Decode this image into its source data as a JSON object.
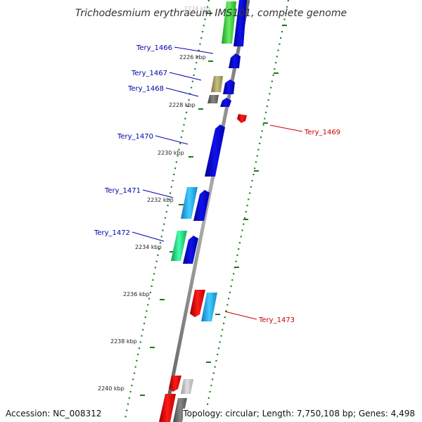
{
  "title": "Trichodesmium erythraeum IMS101, complete genome",
  "footer": {
    "accession": "Accession: NC_008312",
    "topology": "Topology: circular; Length: 7,750,108 bp; Genes: 4,498"
  },
  "colors": {
    "backbone": "#7a7a7a",
    "dot_track": "#1a7a1a",
    "forward_label": "#0000aa",
    "reverse_label": "#cc0000",
    "blue_gene": "#0000dd",
    "red_gene": "#ee0000",
    "cyan_gene": "#22aaee",
    "green_gene": "#22dd88",
    "olive_gene": "#a09a55",
    "grey_gene": "#666666"
  },
  "ticks": [
    {
      "label": "2224 kbp",
      "faded": true
    },
    {
      "label": "2226 kbp",
      "faded": false
    },
    {
      "label": "2228 kbp",
      "faded": false
    },
    {
      "label": "2230 kbp",
      "faded": false
    },
    {
      "label": "2232 kbp",
      "faded": false
    },
    {
      "label": "2234 kbp",
      "faded": false
    },
    {
      "label": "2236 kbp",
      "faded": false
    },
    {
      "label": "2238 kbp",
      "faded": false
    },
    {
      "label": "2240 kbp",
      "faded": false
    }
  ],
  "gene_labels": [
    {
      "text": "Tery_1466",
      "strand": "forward"
    },
    {
      "text": "Tery_1467",
      "strand": "forward"
    },
    {
      "text": "Tery_1468",
      "strand": "forward"
    },
    {
      "text": "Tery_1470",
      "strand": "forward"
    },
    {
      "text": "Tery_1471",
      "strand": "forward"
    },
    {
      "text": "Tery_1472",
      "strand": "forward"
    },
    {
      "text": "Tery_1469",
      "strand": "reverse"
    },
    {
      "text": "Tery_1473",
      "strand": "reverse"
    }
  ]
}
